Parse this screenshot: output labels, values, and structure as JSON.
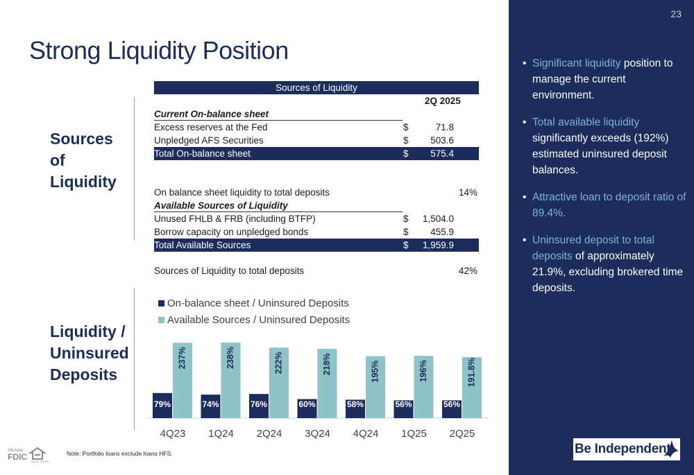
{
  "title": "Strong Liquidity Position",
  "sections": {
    "sources_label": [
      "Sources",
      "of",
      "Liquidity"
    ],
    "ratio_label": [
      "Liquidity /",
      "Uninsured",
      "Deposits"
    ]
  },
  "table": {
    "header": "Sources of Liquidity",
    "period": "2Q 2025",
    "current_heading": "Current On-balance sheet",
    "rows_current": [
      {
        "label": "Excess reserves at the Fed",
        "dollar": "$",
        "value": "71.8"
      },
      {
        "label": "Unpledged AFS Securities",
        "dollar": "$",
        "value": "503.6"
      }
    ],
    "total_onbalance": {
      "label": "Total On-balance sheet",
      "dollar": "$",
      "value": "575.4"
    },
    "ratio1": {
      "label": "On balance sheet liquidity to total deposits",
      "value": "14%"
    },
    "available_heading": "Available Sources of Liquidity",
    "rows_available": [
      {
        "label": "Unused FHLB & FRB (including BTFP)",
        "dollar": "$",
        "value": "1,504.0"
      },
      {
        "label": "Borrow capacity on unpledged bonds",
        "dollar": "$",
        "value": "455.9"
      }
    ],
    "total_available": {
      "label": "Total Available Sources",
      "dollar": "$",
      "value": "1,959.9"
    },
    "ratio2": {
      "label": "Sources of Liquidity to total deposits",
      "value": "42%"
    }
  },
  "chart_data": {
    "type": "bar",
    "categories": [
      "4Q23",
      "1Q24",
      "2Q24",
      "3Q24",
      "4Q24",
      "1Q25",
      "2Q25"
    ],
    "series": [
      {
        "name": "On-balance sheet / Uninsured Deposits",
        "color": "#1c2c5b",
        "values": [
          79,
          74,
          76,
          60,
          58,
          56,
          56
        ],
        "labels": [
          "79%",
          "74%",
          "76%",
          "60%",
          "58%",
          "56%",
          "56%"
        ]
      },
      {
        "name": "Available Sources / Uninsured Deposits",
        "color": "#8ec3c8",
        "values": [
          237,
          238,
          222,
          218,
          195,
          196,
          191.8
        ],
        "labels": [
          "237%",
          "238%",
          "222%",
          "218%",
          "195%",
          "196%",
          "191.8%"
        ]
      }
    ],
    "ylim": [
      0,
      240
    ]
  },
  "panel": {
    "page_number": "23",
    "bullets": [
      {
        "hl": "Significant liquidity",
        "rest": " position to manage the current environment."
      },
      {
        "hl": "Total available liquidity",
        "rest": " significantly exceeds (192%) estimated uninsured deposit balances."
      },
      {
        "hl": "Attractive loan to deposit ratio of 89.4%.",
        "rest": ""
      },
      {
        "hl": "Uninsured deposit to total deposits",
        "rest": " of approximately 21.9%, excluding brokered time deposits."
      }
    ]
  },
  "brand": "Be Independent",
  "note": "Note: Portfolio loans exclude loans HFS.",
  "fdic": {
    "member": "Member",
    "fdic": "FDIC",
    "lender": "EQUAL HOUSING LENDER"
  },
  "colors": {
    "navy": "#1c2c5b",
    "teal": "#8ec3c8",
    "highlight": "#7fb3d5"
  }
}
